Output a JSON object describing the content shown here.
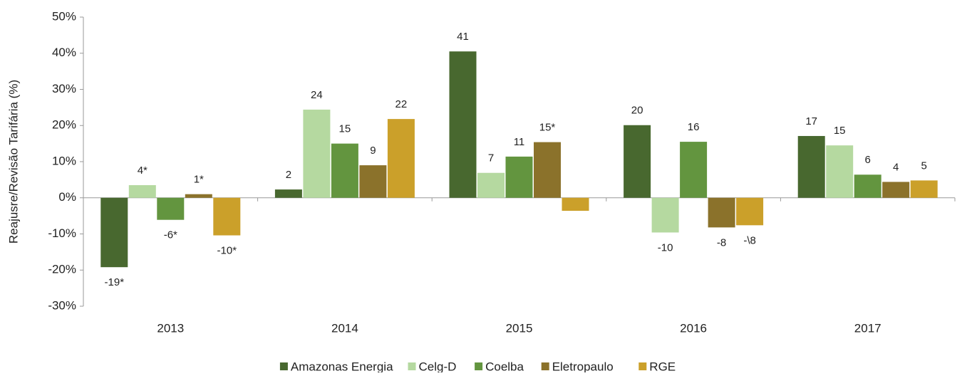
{
  "chart_data": {
    "type": "bar",
    "ylabel": "Reajusre/Revisão Tarifária (%)",
    "categories": [
      "2013",
      "2014",
      "2015",
      "2016",
      "2017"
    ],
    "series": [
      {
        "name": "Amazonas Energia",
        "color": "#48682f",
        "values": [
          -19.2,
          2.3,
          40.5,
          20.1,
          17.1
        ],
        "value_labels": [
          "-19*",
          "2",
          "41",
          "20",
          "17"
        ]
      },
      {
        "name": "Celg-D",
        "color": "#b5d9a0",
        "values": [
          3.5,
          24.4,
          6.9,
          -9.6,
          14.5
        ],
        "value_labels": [
          "4*",
          "24",
          "7",
          "-10",
          "15"
        ]
      },
      {
        "name": "Coelba",
        "color": "#63953f",
        "values": [
          -6.1,
          15.0,
          11.4,
          15.5,
          6.4
        ],
        "value_labels": [
          "-6*",
          "15",
          "11",
          "16",
          "6"
        ]
      },
      {
        "name": "Eletropaulo",
        "color": "#8b722b",
        "values": [
          1.0,
          9.0,
          15.4,
          -8.2,
          4.4
        ],
        "value_labels": [
          "1*",
          "9",
          "15*",
          "-8",
          "4"
        ]
      },
      {
        "name": "RGE",
        "color": "#cba02a",
        "values": [
          -10.4,
          21.8,
          -3.6,
          -7.6,
          4.8
        ],
        "value_labels": [
          "-10*",
          "22",
          null,
          "-\\8",
          "5"
        ]
      }
    ],
    "ylim": [
      -30,
      50
    ],
    "yticks": [
      {
        "value": -30,
        "label": "-30%"
      },
      {
        "value": -20,
        "label": "-20%"
      },
      {
        "value": -10,
        "label": "-10%"
      },
      {
        "value": 0,
        "label": "0%"
      },
      {
        "value": 10,
        "label": "10%"
      },
      {
        "value": 20,
        "label": "20%"
      },
      {
        "value": 30,
        "label": "30%"
      },
      {
        "value": 40,
        "label": "40%"
      },
      {
        "value": 50,
        "label": "50%"
      }
    ]
  }
}
